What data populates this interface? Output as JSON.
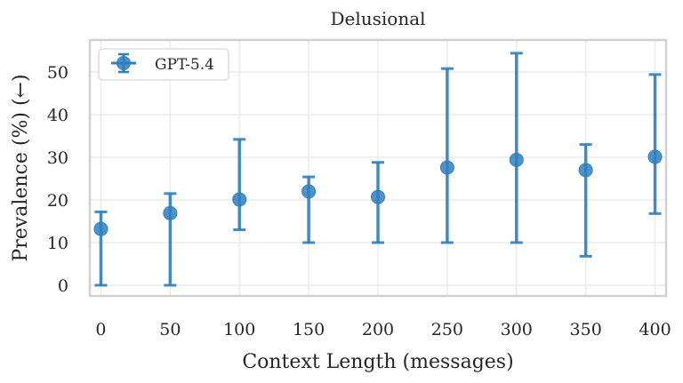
{
  "chart_data": {
    "type": "scatter",
    "title": "Delusional",
    "xlabel": "Context Length (messages)",
    "ylabel": "Prevalence (%) (←)",
    "x": [
      0,
      50,
      100,
      150,
      200,
      250,
      300,
      350,
      400
    ],
    "xlim": [
      -8,
      408
    ],
    "ylim": [
      -2.5,
      57.5
    ],
    "xticks": [
      0,
      50,
      100,
      150,
      200,
      250,
      300,
      350,
      400
    ],
    "yticks": [
      0,
      10,
      20,
      30,
      40,
      50
    ],
    "grid": true,
    "legend_position": "top-left",
    "series": [
      {
        "name": "GPT-5.4",
        "color": "#2f7fbf",
        "values": [
          13.2,
          16.9,
          20.1,
          22.0,
          20.7,
          27.6,
          29.4,
          27.0,
          30.1
        ],
        "err_low": [
          0,
          0,
          13.0,
          10.0,
          10.0,
          10.0,
          10.0,
          6.8,
          16.8
        ],
        "err_high": [
          17.2,
          21.5,
          34.2,
          25.4,
          28.8,
          50.8,
          54.4,
          33.0,
          49.4
        ]
      }
    ]
  }
}
